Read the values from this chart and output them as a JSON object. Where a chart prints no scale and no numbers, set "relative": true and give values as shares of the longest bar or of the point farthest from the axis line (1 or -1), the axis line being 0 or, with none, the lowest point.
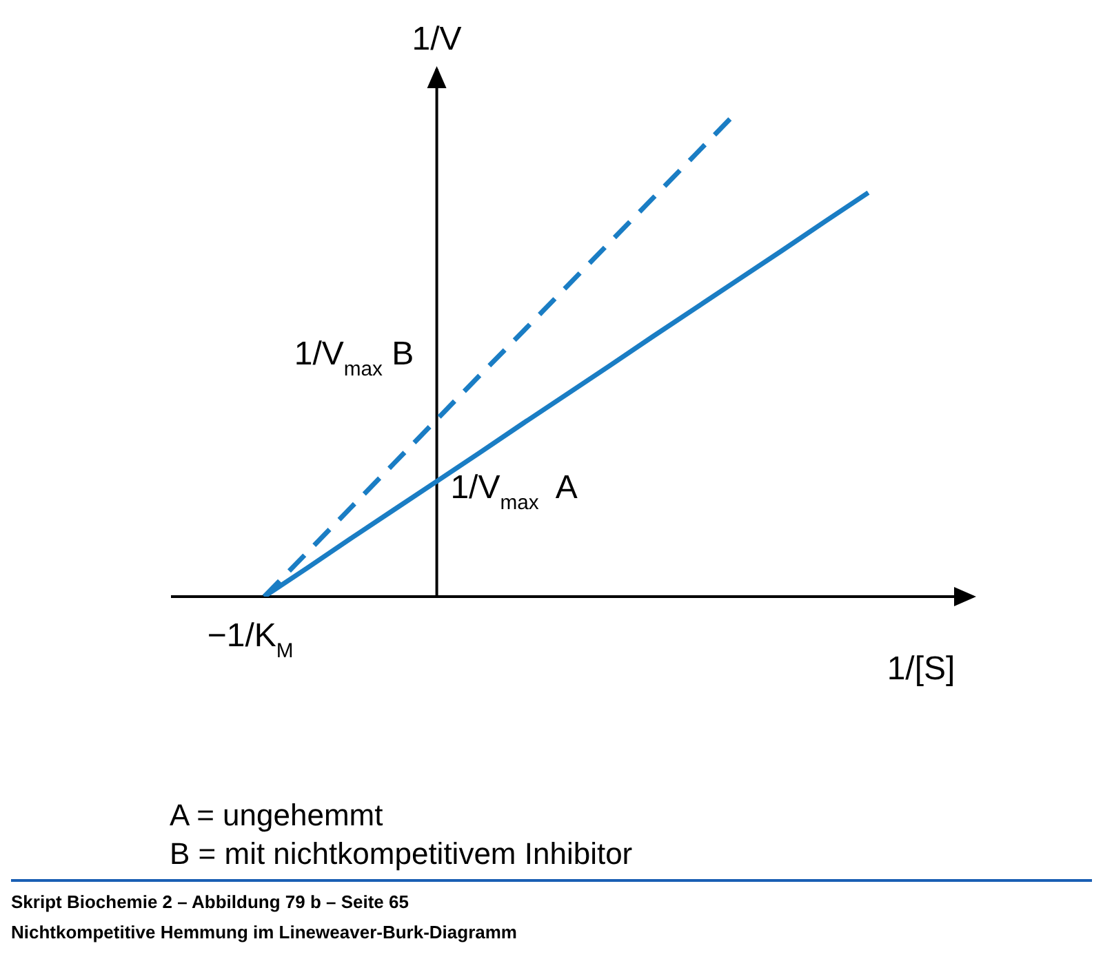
{
  "chart_data": {
    "type": "line",
    "relative": true,
    "xlabel": "1/[S]",
    "ylabel": "1/V",
    "grid": false,
    "marker": "none",
    "categories": [
      null,
      null,
      null,
      null,
      null,
      null,
      null,
      null,
      null,
      null,
      null,
      null,
      null,
      null,
      null,
      null,
      null,
      null,
      null
    ],
    "series": [
      {
        "color": "#1a7dc4",
        "line_style": "solid",
        "values": [
          null,
          null,
          0,
          0.059,
          0.119,
          0.178,
          0.237,
          0.296,
          0.356,
          0.415,
          0.474,
          0.534,
          0.593,
          0.652,
          0.711,
          0.771,
          0.83,
          null,
          null
        ]
      },
      {
        "color": "#1a7dc4",
        "line_style": "dashed",
        "values": [
          null,
          null,
          0,
          0.091,
          0.182,
          0.273,
          0.364,
          0.455,
          0.545,
          0.636,
          0.727,
          0.818,
          0.909,
          1,
          null,
          null,
          null,
          null,
          null
        ]
      }
    ],
    "annotations": [
      "1/V$_{max}$ B",
      "1/V$_{max}$  A",
      "−1/K$_{M}$",
      "A = ungehemmt",
      "B = mit nichtkompetitivem Inhibitor",
      "Skript Biochemie 2 – Abbildung 79 b – Seite 65",
      "Nichtkompetitive Hemmung im Lineweaver-Burk-Diagramm"
    ]
  }
}
